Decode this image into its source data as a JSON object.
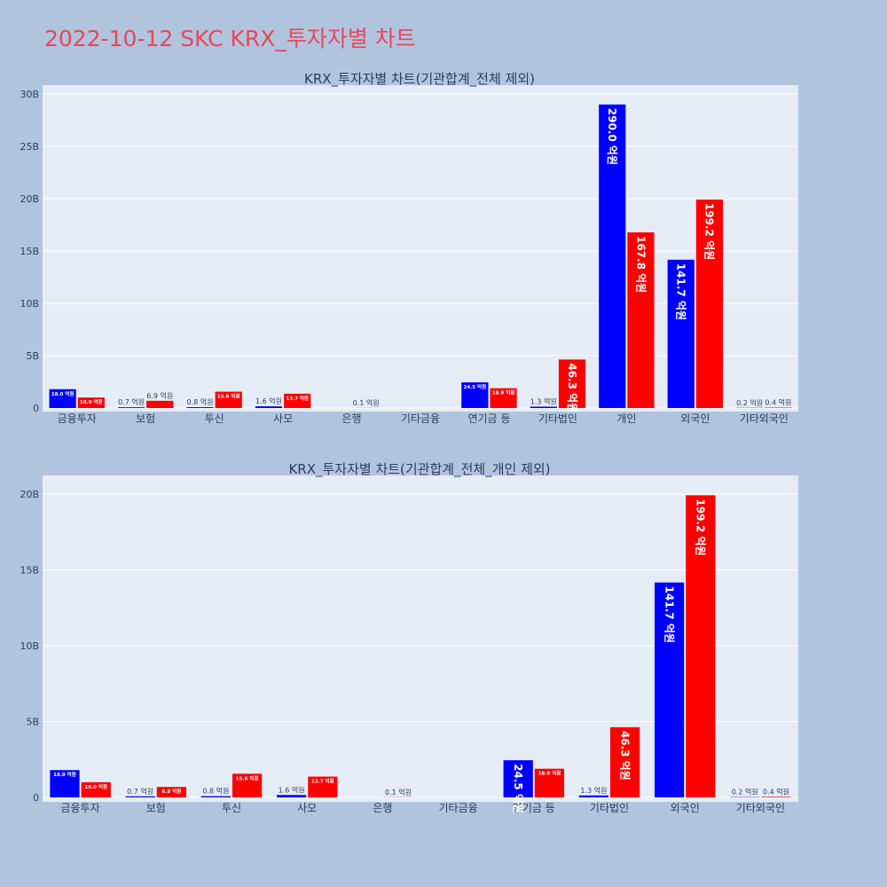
{
  "page": {
    "title": "2022-10-12 SKC KRX_투자자별 차트"
  },
  "colors": {
    "buy": "#0000ff",
    "sell": "#ff0000",
    "plot_bg": "#e5ecf6",
    "page_bg": "#b0c4de",
    "title": "#e8475d"
  },
  "chart_data": [
    {
      "type": "bar",
      "title": "KRX_투자자별 차트(기관합계_전체 제외)",
      "categories": [
        "금융투자",
        "보험",
        "투신",
        "사모",
        "은행",
        "기타금융",
        "연기금 등",
        "기타법인",
        "개인",
        "외국인",
        "기타외국인"
      ],
      "series": [
        {
          "values": [
            1.8,
            0.07,
            0.08,
            0.16,
            0,
            0,
            2.45,
            0.13,
            29.0,
            14.17,
            0.02
          ],
          "labels": [
            "18.0 억원",
            "0.7 억원",
            "0.8 억원",
            "1.6 억원",
            "",
            "",
            "24.5 억원",
            "1.3 억원",
            "290.0 억원",
            "141.7 억원",
            "0.2 억원"
          ]
        },
        {
          "values": [
            1.0,
            0.69,
            1.56,
            1.37,
            0.01,
            0,
            1.89,
            4.63,
            16.78,
            19.92,
            0.04
          ],
          "labels": [
            "10.0 억원",
            "6.9 억원",
            "15.6 억원",
            "13.7 억원",
            "0.1 억원",
            "",
            "18.9 억원",
            "46.3 억원",
            "167.8 억원",
            "199.2 억원",
            "0.4 억원"
          ]
        }
      ],
      "yticks": [
        "0",
        "5B",
        "10B",
        "15B",
        "20B",
        "25B",
        "30B"
      ],
      "ylim": [
        0,
        30.5
      ],
      "grid": true
    },
    {
      "type": "bar",
      "title": "KRX_투자자별 차트(기관합계_전체_개인 제외)",
      "categories": [
        "금융투자",
        "보험",
        "투신",
        "사모",
        "은행",
        "기타금융",
        "연기금 등",
        "기타법인",
        "외국인",
        "기타외국인"
      ],
      "series": [
        {
          "values": [
            1.8,
            0.07,
            0.08,
            0.16,
            0,
            0,
            2.45,
            0.13,
            14.17,
            0.02
          ],
          "labels": [
            "18.0 억원",
            "0.7 억원",
            "0.8 억원",
            "1.6 억원",
            "",
            "",
            "24.5 억원",
            "1.3 억원",
            "141.7 억원",
            "0.2 억원"
          ]
        },
        {
          "values": [
            1.0,
            0.69,
            1.56,
            1.37,
            0.01,
            0,
            1.89,
            4.63,
            19.92,
            0.04
          ],
          "labels": [
            "10.0 억원",
            "6.9 억원",
            "15.6 억원",
            "13.7 억원",
            "0.1 억원",
            "",
            "18.9 억원",
            "46.3 억원",
            "199.2 억원",
            "0.4 억원"
          ]
        }
      ],
      "yticks": [
        "0",
        "5B",
        "10B",
        "15B",
        "20B"
      ],
      "ylim": [
        0,
        21
      ],
      "grid": true
    }
  ]
}
